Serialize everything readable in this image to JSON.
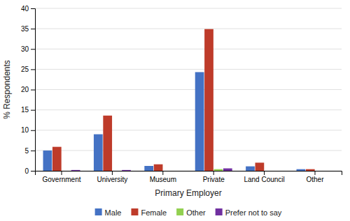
{
  "chart_data": {
    "type": "bar",
    "categories": [
      "Government",
      "University",
      "Museum",
      "Private",
      "Land Council",
      "Other"
    ],
    "series": [
      {
        "name": "Male",
        "color": "#4472C4",
        "values": [
          5.0,
          9.0,
          1.2,
          24.3,
          1.1,
          0.4
        ]
      },
      {
        "name": "Female",
        "color": "#BE3B2A",
        "values": [
          5.9,
          13.6,
          1.6,
          34.9,
          2.0,
          0.4
        ]
      },
      {
        "name": "Other",
        "color": "#92D050",
        "values": [
          0.0,
          0.0,
          0.0,
          0.4,
          0.0,
          0.0
        ]
      },
      {
        "name": "Prefer not to say",
        "color": "#7030A0",
        "values": [
          0.2,
          0.2,
          0.0,
          0.6,
          0.0,
          0.0
        ]
      }
    ],
    "xlabel": "Primary Employer",
    "ylabel": "% Respondents",
    "ylim": [
      0,
      40
    ],
    "yticks": [
      0,
      5,
      10,
      15,
      20,
      25,
      30,
      35,
      40
    ],
    "grid": true,
    "legend": "bottom"
  }
}
